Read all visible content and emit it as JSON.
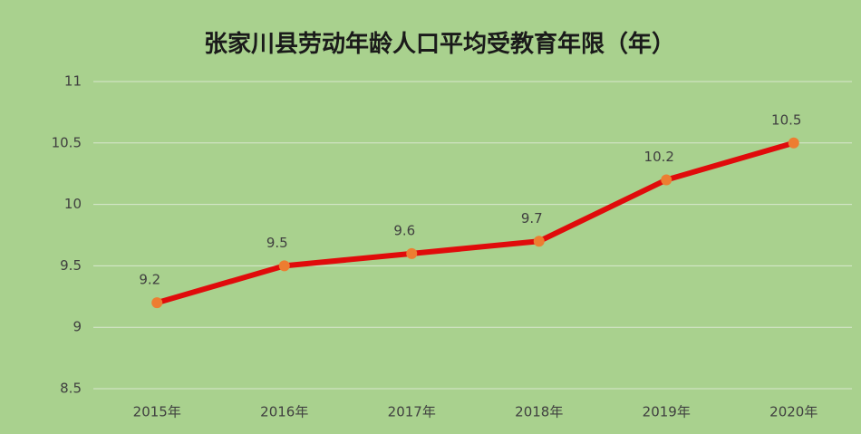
{
  "chart_data": {
    "type": "line",
    "title": "张家川县劳动年龄人口平均受教育年限（年）",
    "categories": [
      "2015年",
      "2016年",
      "2017年",
      "2018年",
      "2019年",
      "2020年"
    ],
    "series": [
      {
        "name": "平均受教育年限",
        "color": "#e00b0b",
        "marker_color": "#ed7d31",
        "values": [
          9.2,
          9.5,
          9.6,
          9.7,
          10.2,
          10.5
        ]
      }
    ],
    "ylim": [
      8.5,
      11
    ],
    "yticks": [
      8.5,
      9,
      9.5,
      10,
      10.5,
      11
    ],
    "grid": true,
    "data_labels": true
  }
}
